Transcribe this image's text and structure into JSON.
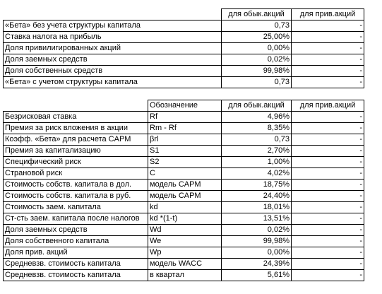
{
  "table1": {
    "headers": [
      "",
      "для обык.акций",
      "для прив.акций"
    ],
    "rows": [
      {
        "label": "«Бета» без учета структуры капитала",
        "common": "0,73",
        "pref": "-"
      },
      {
        "label": "Ставка налога на прибыль",
        "common": "25,00%",
        "pref": "-"
      },
      {
        "label": "Доля привилигированных акций",
        "common": "0,00%",
        "pref": "-"
      },
      {
        "label": "Доля заемных средств",
        "common": "0,02%",
        "pref": "-"
      },
      {
        "label": "Доля собственных средств",
        "common": "99,98%",
        "pref": "-"
      },
      {
        "label": "«Бета» с учетом структуры капитала",
        "common": "0,73",
        "pref": "-"
      }
    ]
  },
  "table2": {
    "headers": [
      "",
      "Обозначение",
      "для обык.акций",
      "для прив.акций"
    ],
    "rows": [
      {
        "label": "Безрисковая ставка",
        "symbol": "Rf",
        "common": "4,96%",
        "pref": "-"
      },
      {
        "label": "Премия за риск вложения в акции",
        "symbol": "Rm - Rf",
        "common": "8,35%",
        "pref": "-"
      },
      {
        "label": "Коэфф. «Бета» для расчета CAPM",
        "symbol": "βrl",
        "common": "0,73",
        "pref": "-"
      },
      {
        "label": "Премия за капитализацию",
        "symbol": "S1",
        "common": "2,70%",
        "pref": "-"
      },
      {
        "label": "Специфический риск",
        "symbol": "S2",
        "common": "1,00%",
        "pref": "-"
      },
      {
        "label": "Страновой риск",
        "symbol": "C",
        "common": "4,02%",
        "pref": "-"
      },
      {
        "label": "Стоимость собств. капитала в дол.",
        "symbol": "модель CAPM",
        "common": "18,75%",
        "pref": "-"
      },
      {
        "label": "Стоимость собств. капитала в руб.",
        "symbol": "модель CAPM",
        "common": "24,40%",
        "pref": "-"
      },
      {
        "label": "Стоимость заем. капитала",
        "symbol": "kd",
        "common": "18,01%",
        "pref": "-"
      },
      {
        "label": "Ст-сть заем. капитала после налогов",
        "symbol": "kd *(1-t)",
        "common": "13,51%",
        "pref": "-"
      },
      {
        "label": "Доля заемных средств",
        "symbol": "Wd",
        "common": "0,02%",
        "pref": "-"
      },
      {
        "label": "Доля собственного капитала",
        "symbol": "We",
        "common": "99,98%",
        "pref": "-"
      },
      {
        "label": "Доля прив. акций",
        "symbol": "Wp",
        "common": "0,00%",
        "pref": "-"
      },
      {
        "label": "Средневзв. стоимость капитала",
        "symbol": "модель WACC",
        "common": "24,39%",
        "pref": "-"
      },
      {
        "label": "Средневзв. стоимость капитала",
        "symbol": "в квартал",
        "common": "5,61%",
        "pref": "-"
      }
    ]
  }
}
